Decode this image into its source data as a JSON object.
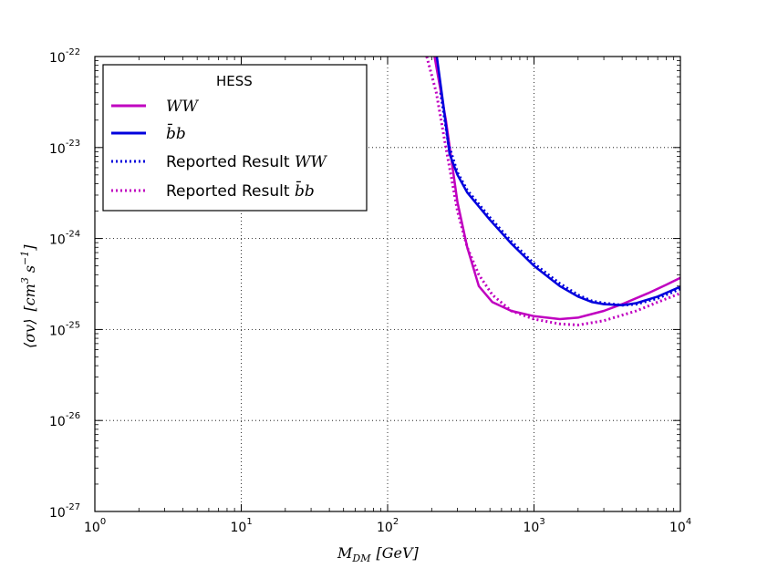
{
  "chart_data": {
    "type": "line",
    "xscale": "log",
    "yscale": "log",
    "xlim": [
      1,
      10000
    ],
    "ylim": [
      1e-27,
      1e-22
    ],
    "grid": true,
    "legend_position": "top-left",
    "xlabel": "M_DM [GeV]",
    "xlabel_main": "M",
    "xlabel_sub": "DM",
    "xlabel_unit": "[GeV]",
    "ylabel": "⟨σv⟩ [cm³ s⁻¹]",
    "ylabel_main": "⟨σv⟩",
    "ylabel_unit": "[cm",
    "ylabel_unit_pow": "3",
    "ylabel_unit_s": "s",
    "ylabel_unit_spow": "−1",
    "ylabel_unit_close": "]",
    "xticks": [
      {
        "value": 1,
        "base": "10",
        "exp": "0"
      },
      {
        "value": 10,
        "base": "10",
        "exp": "1"
      },
      {
        "value": 100,
        "base": "10",
        "exp": "2"
      },
      {
        "value": 1000,
        "base": "10",
        "exp": "3"
      },
      {
        "value": 10000,
        "base": "10",
        "exp": "4"
      }
    ],
    "yticks": [
      {
        "value": 1e-27,
        "base": "10",
        "exp": "-27"
      },
      {
        "value": 1e-26,
        "base": "10",
        "exp": "-26"
      },
      {
        "value": 1e-25,
        "base": "10",
        "exp": "-25"
      },
      {
        "value": 1e-24,
        "base": "10",
        "exp": "-24"
      },
      {
        "value": 1e-23,
        "base": "10",
        "exp": "-23"
      },
      {
        "value": 1e-22,
        "base": "10",
        "exp": "-22"
      }
    ],
    "legend_title": "HESS",
    "series": [
      {
        "name": "WW",
        "italic": true,
        "color": "#c000c0",
        "style": "solid",
        "x": [
          200,
          250,
          300,
          350,
          420,
          520,
          700,
          1000,
          1500,
          2000,
          3000,
          4000,
          6000,
          8000,
          10000
        ],
        "y": [
          1.5e-22,
          2e-23,
          2.5e-24,
          8e-25,
          3e-25,
          2e-25,
          1.6e-25,
          1.4e-25,
          1.3e-25,
          1.35e-25,
          1.6e-25,
          1.9e-25,
          2.5e-25,
          3.1e-25,
          3.7e-25
        ]
      },
      {
        "name": "b̄b",
        "italic": true,
        "color": "#0000dd",
        "style": "solid",
        "x": [
          215,
          240,
          265,
          300,
          350,
          500,
          700,
          1000,
          1500,
          2000,
          2500,
          3000,
          4000,
          5000,
          7000,
          10000
        ],
        "y": [
          1.1e-22,
          3e-23,
          8.5e-24,
          5e-24,
          3.2e-24,
          1.6e-24,
          8.8e-25,
          5e-25,
          3e-25,
          2.3e-25,
          2e-25,
          1.9e-25,
          1.85e-25,
          1.95e-25,
          2.3e-25,
          2.95e-25
        ]
      },
      {
        "name": "Reported Result WW",
        "prefix": "Reported Result ",
        "suffix": "WW",
        "color": "#0000dd",
        "style": "dotted",
        "x": [
          230,
          260,
          300,
          350,
          500,
          700,
          1000,
          1500,
          2000,
          2500,
          3000,
          4000,
          5000,
          7000,
          10000
        ],
        "y": [
          4e-23,
          1.1e-23,
          5.3e-24,
          3.4e-24,
          1.7e-24,
          9.3e-25,
          5.3e-25,
          3.2e-25,
          2.4e-25,
          2.05e-25,
          1.95e-25,
          1.85e-25,
          1.9e-25,
          2.2e-25,
          2.8e-25
        ]
      },
      {
        "name": "Reported Result b̄b",
        "prefix": "Reported Result ",
        "suffix": "b̄b",
        "color": "#c000c0",
        "style": "dotted",
        "x": [
          185,
          215,
          250,
          300,
          350,
          420,
          520,
          700,
          1000,
          1500,
          2000,
          3000,
          5000,
          7000,
          10000
        ],
        "y": [
          1e-22,
          4e-23,
          1e-23,
          2e-24,
          8e-25,
          4e-25,
          2.4e-25,
          1.6e-25,
          1.3e-25,
          1.15e-25,
          1.12e-25,
          1.25e-25,
          1.6e-25,
          2e-25,
          2.5e-25
        ]
      }
    ]
  }
}
